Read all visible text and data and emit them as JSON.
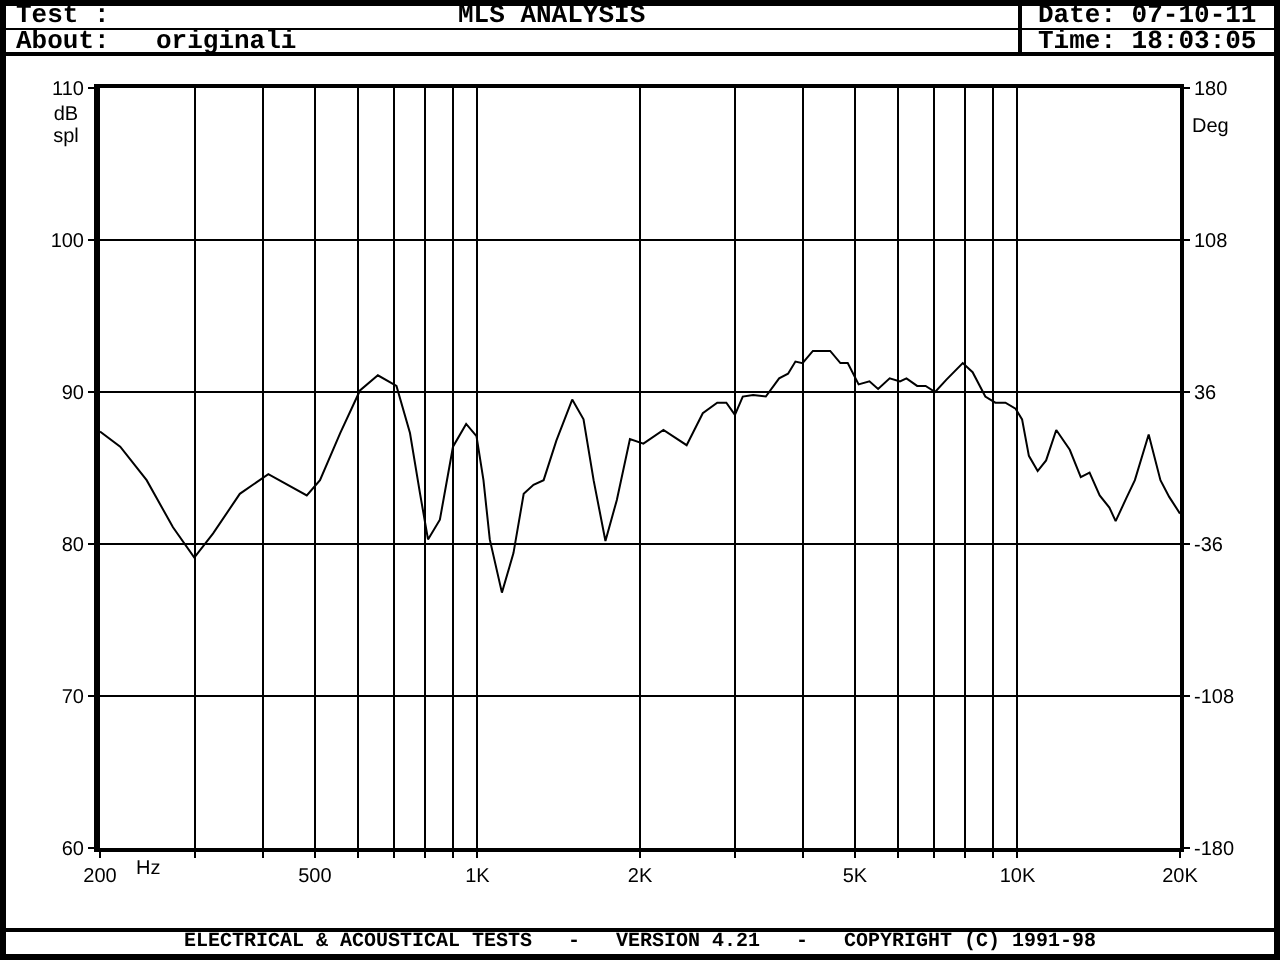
{
  "chart_data": {
    "type": "line",
    "title": "MLS ANALYSIS",
    "xlabel": "Hz",
    "ylabel": "dB spl",
    "y2label": "Deg",
    "annotations": [
      "Test :",
      "About:",
      "originali",
      "Date: 07-10-11",
      "Time: 18:03:05",
      "ELECTRICAL & ACOUSTICAL TESTS   -   VERSION 4.21   -   COPYRIGHT (C) 1991-98"
    ],
    "log": "x",
    "x": [
      200,
      218,
      244,
      273,
      299,
      324,
      363,
      410,
      483,
      511,
      557,
      606,
      654,
      708,
      750,
      783,
      810,
      852,
      901,
      953,
      996,
      1026,
      1054,
      1110,
      1166,
      1218,
      1270,
      1326,
      1400,
      1498,
      1572,
      1641,
      1726,
      1812,
      1916,
      2029,
      2210,
      2440,
      2614,
      2780,
      2890,
      2998,
      3100,
      3240,
      3420,
      3620,
      3760,
      3880,
      4000,
      4180,
      4500,
      4700,
      4850,
      5080,
      5320,
      5520,
      5800,
      6060,
      6230,
      6520,
      6760,
      7040,
      7380,
      7920,
      8260,
      8720,
      9100,
      9500,
      9920,
      10200,
      10500,
      10900,
      11300,
      11800,
      12500,
      13100,
      13600,
      14200,
      14800,
      15200,
      15900,
      16500,
      17500,
      18400,
      19100,
      20000
    ],
    "series": [
      {
        "color": "#000000",
        "values": [
          87.4,
          86.4,
          84.2,
          81.1,
          79.1,
          80.7,
          83.3,
          84.6,
          83.2,
          84.2,
          87.3,
          90.1,
          91.1,
          90.4,
          87.3,
          83.3,
          80.3,
          81.6,
          86.4,
          87.9,
          87.1,
          84.2,
          80.3,
          76.8,
          79.4,
          83.3,
          83.9,
          84.2,
          86.8,
          89.5,
          88.2,
          84.2,
          80.2,
          82.9,
          86.9,
          86.6,
          87.5,
          86.5,
          88.6,
          89.3,
          89.3,
          88.5,
          89.7,
          89.8,
          89.7,
          90.9,
          91.2,
          92.0,
          91.9,
          92.7,
          92.7,
          91.9,
          91.9,
          90.5,
          90.7,
          90.2,
          90.9,
          90.7,
          90.9,
          90.4,
          90.4,
          90.0,
          90.8,
          91.9,
          91.3,
          89.7,
          89.3,
          89.3,
          88.9,
          88.2,
          85.8,
          84.8,
          85.5,
          87.5,
          86.2,
          84.4,
          84.7,
          83.2,
          82.4,
          81.5,
          83.0,
          84.2,
          87.2,
          84.2,
          83.1,
          82.0
        ]
      }
    ],
    "xlim": [
      200,
      20000
    ],
    "xticks": [
      200,
      {
        "value": 300,
        "label": null
      },
      {
        "value": 400,
        "label": null
      },
      500,
      {
        "value": 600,
        "label": null
      },
      {
        "value": 700,
        "label": null
      },
      {
        "value": 800,
        "label": null
      },
      {
        "value": 900,
        "label": null
      },
      {
        "value": 1000,
        "label": "1K"
      },
      {
        "value": 2000,
        "label": "2K"
      },
      {
        "value": 3000,
        "label": null
      },
      {
        "value": 4000,
        "label": null
      },
      {
        "value": 5000,
        "label": "5K"
      },
      {
        "value": 6000,
        "label": null
      },
      {
        "value": 7000,
        "label": null
      },
      {
        "value": 8000,
        "label": null
      },
      {
        "value": 9000,
        "label": null
      },
      {
        "value": 10000,
        "label": "10K"
      },
      {
        "value": 20000,
        "label": "20K"
      }
    ],
    "ylim": [
      60,
      110
    ],
    "yticks": [
      60,
      70,
      80,
      90,
      100,
      110
    ],
    "y2lim": [
      -180,
      180
    ],
    "y2ticks": [
      -180,
      -108,
      -36,
      36,
      108,
      180
    ],
    "grid": true,
    "marker": "none",
    "line_style": "solid"
  }
}
